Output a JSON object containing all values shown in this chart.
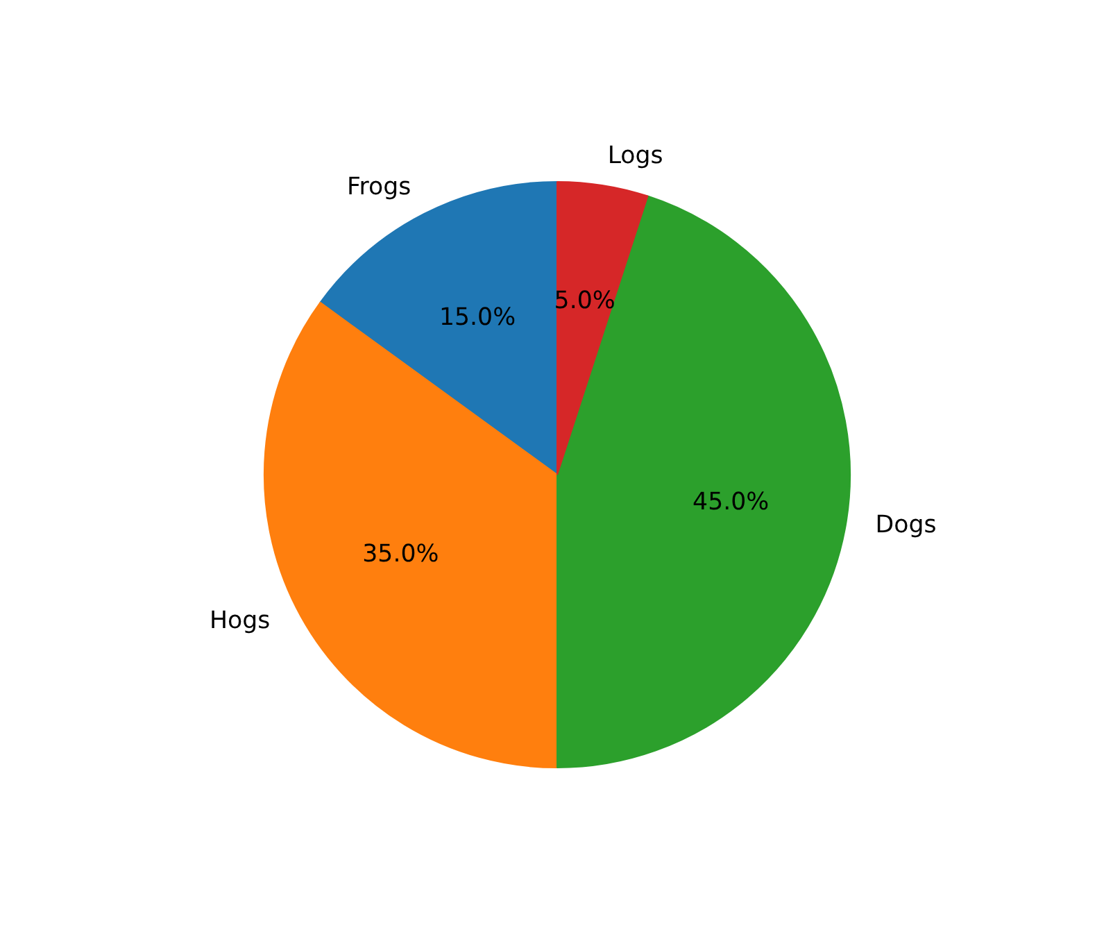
{
  "chart_data": {
    "type": "pie",
    "categories": [
      "Frogs",
      "Hogs",
      "Dogs",
      "Logs"
    ],
    "values": [
      15,
      35,
      45,
      5
    ],
    "colors": [
      "#1f77b4",
      "#ff7f0e",
      "#2ca02c",
      "#d62728"
    ],
    "value_labels": [
      "15.0%",
      "35.0%",
      "45.0%",
      "5.0%"
    ]
  }
}
